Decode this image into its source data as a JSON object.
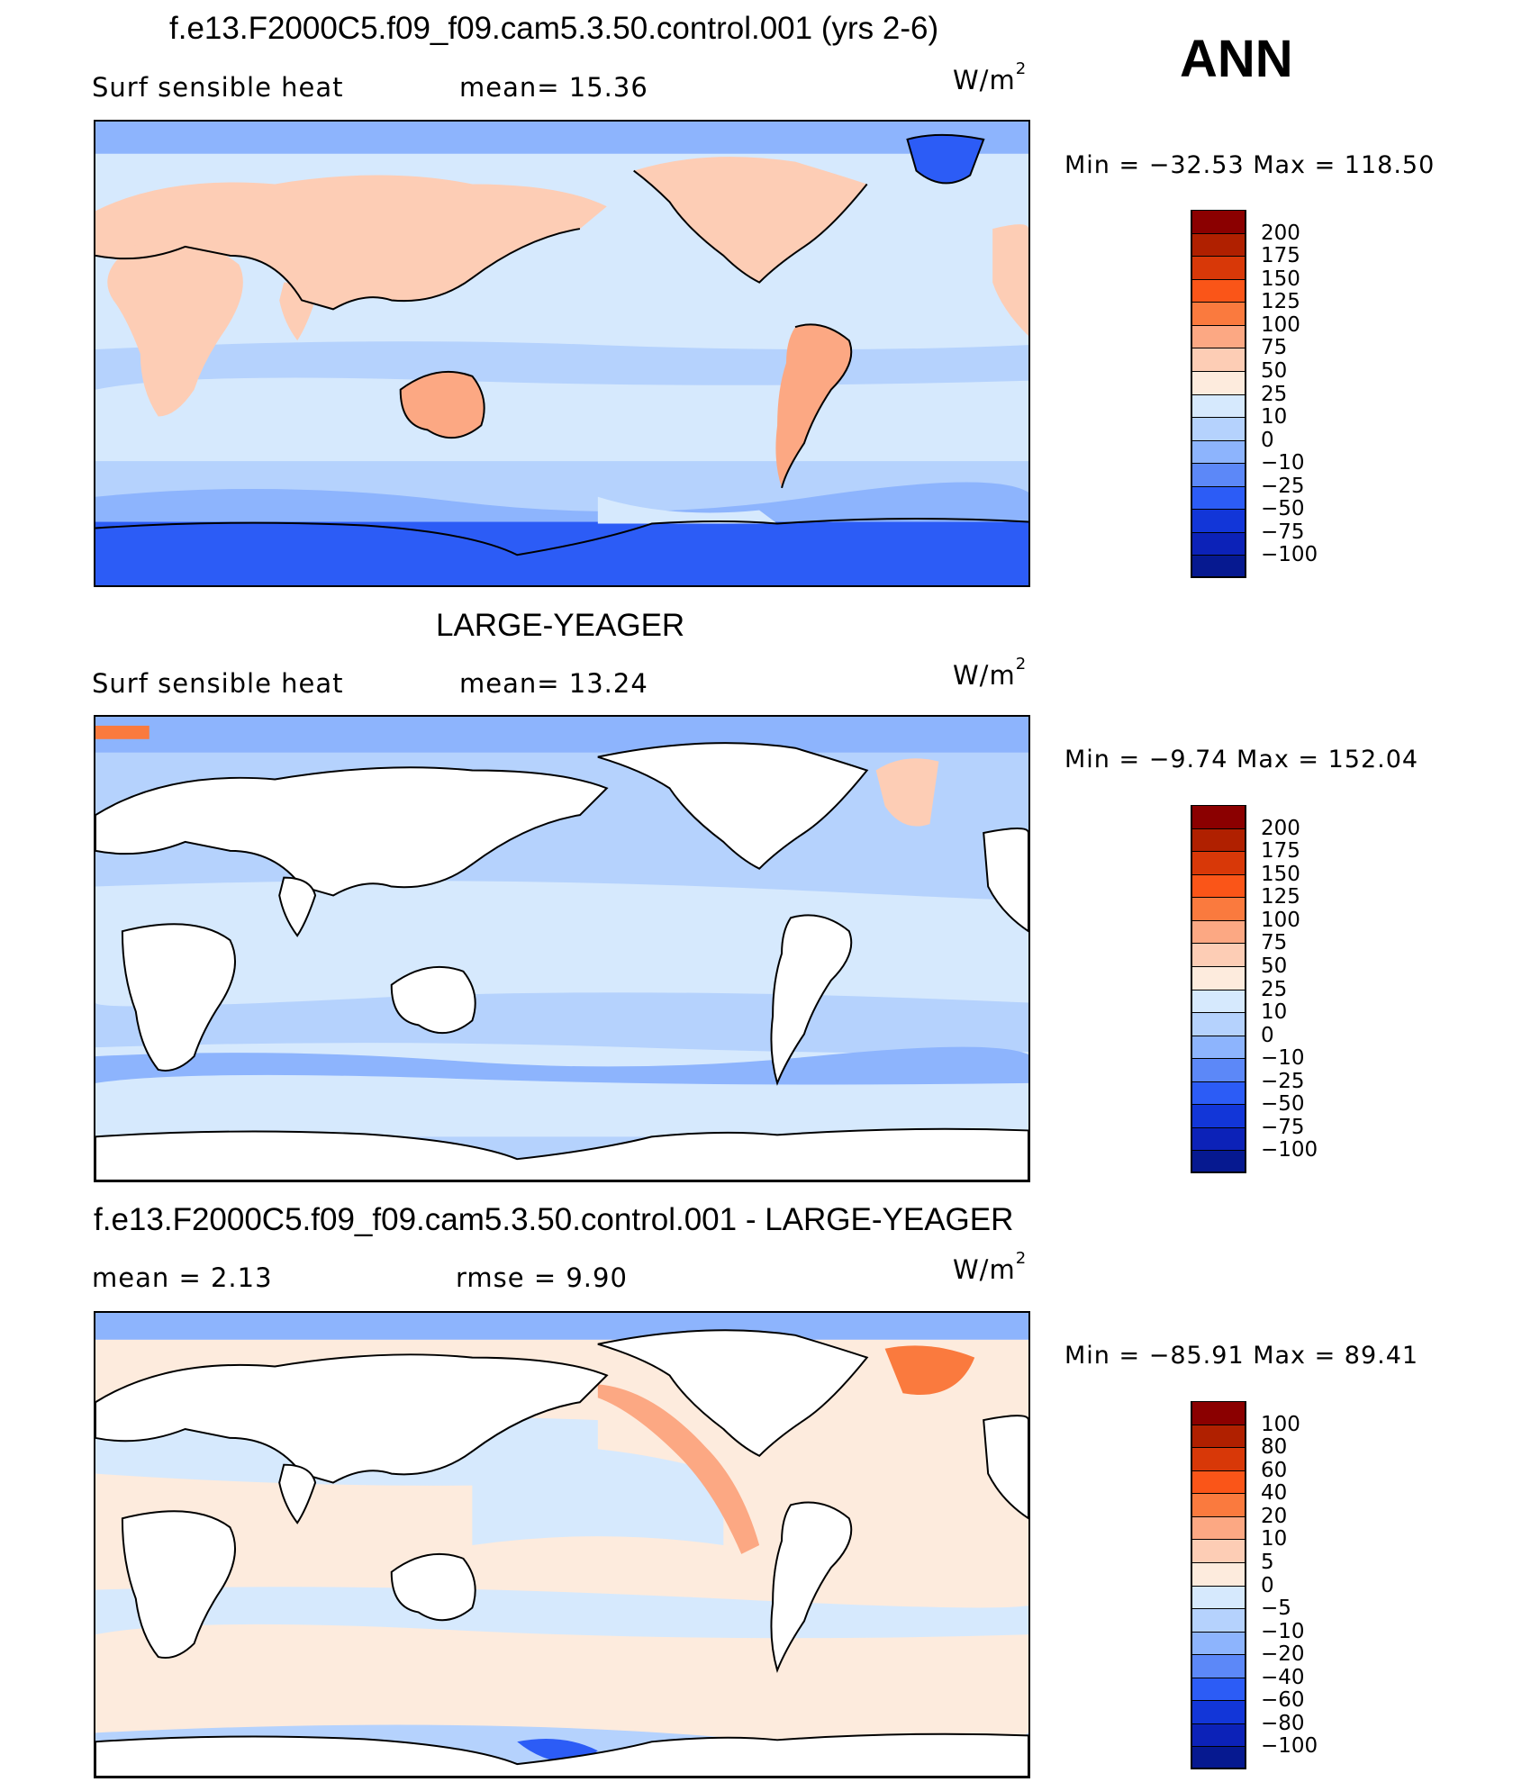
{
  "season": "ANN",
  "units_base": "W/m",
  "units_exp": "2",
  "panels": [
    {
      "title": "f.e13.F2000C5.f09_f09.cam5.3.50.control.001 (yrs 2-6)",
      "left_label": "Surf  sensible  heat",
      "right_label": "mean=   15.36",
      "min_max": "Min  =  −32.53  Max  =  118.50",
      "colorbar": {
        "labels": [
          "200",
          "175",
          "150",
          "125",
          "100",
          "75",
          "50",
          "25",
          "10",
          "0",
          "−10",
          "−25",
          "−50",
          "−75",
          "−100"
        ],
        "colors": [
          "#8b0000",
          "#b02000",
          "#d83808",
          "#fa5518",
          "#fa7a3e",
          "#fca883",
          "#fdcdb5",
          "#fdebdd",
          "#d6e9fd",
          "#b5d2fd",
          "#8db4fd",
          "#5c88f8",
          "#2c5cf6",
          "#1236d8",
          "#0c22b8",
          "#061990"
        ]
      }
    },
    {
      "title": "LARGE-YEAGER",
      "left_label": "Surf  sensible  heat",
      "right_label": "mean=   13.24",
      "min_max": "Min  =   −9.74  Max  =  152.04",
      "colorbar": {
        "labels": [
          "200",
          "175",
          "150",
          "125",
          "100",
          "75",
          "50",
          "25",
          "10",
          "0",
          "−10",
          "−25",
          "−50",
          "−75",
          "−100"
        ],
        "colors": [
          "#8b0000",
          "#b02000",
          "#d83808",
          "#fa5518",
          "#fa7a3e",
          "#fca883",
          "#fdcdb5",
          "#fdebdd",
          "#d6e9fd",
          "#b5d2fd",
          "#8db4fd",
          "#5c88f8",
          "#2c5cf6",
          "#1236d8",
          "#0c22b8",
          "#061990"
        ]
      }
    },
    {
      "title": "f.e13.F2000C5.f09_f09.cam5.3.50.control.001 - LARGE-YEAGER",
      "left_label": "mean  =      2.13",
      "right_label": "rmse  =      9.90",
      "min_max": "Min  =  −85.91  Max  =    89.41",
      "colorbar": {
        "labels": [
          "100",
          "80",
          "60",
          "40",
          "20",
          "10",
          "5",
          "0",
          "−5",
          "−10",
          "−20",
          "−40",
          "−60",
          "−80",
          "−100"
        ],
        "colors": [
          "#8b0000",
          "#b02000",
          "#d83808",
          "#fa5518",
          "#fa7a3e",
          "#fca883",
          "#fdcdb5",
          "#fdebdd",
          "#d6e9fd",
          "#b5d2fd",
          "#8db4fd",
          "#5c88f8",
          "#2c5cf6",
          "#1236d8",
          "#0c22b8",
          "#061990"
        ]
      }
    }
  ]
}
